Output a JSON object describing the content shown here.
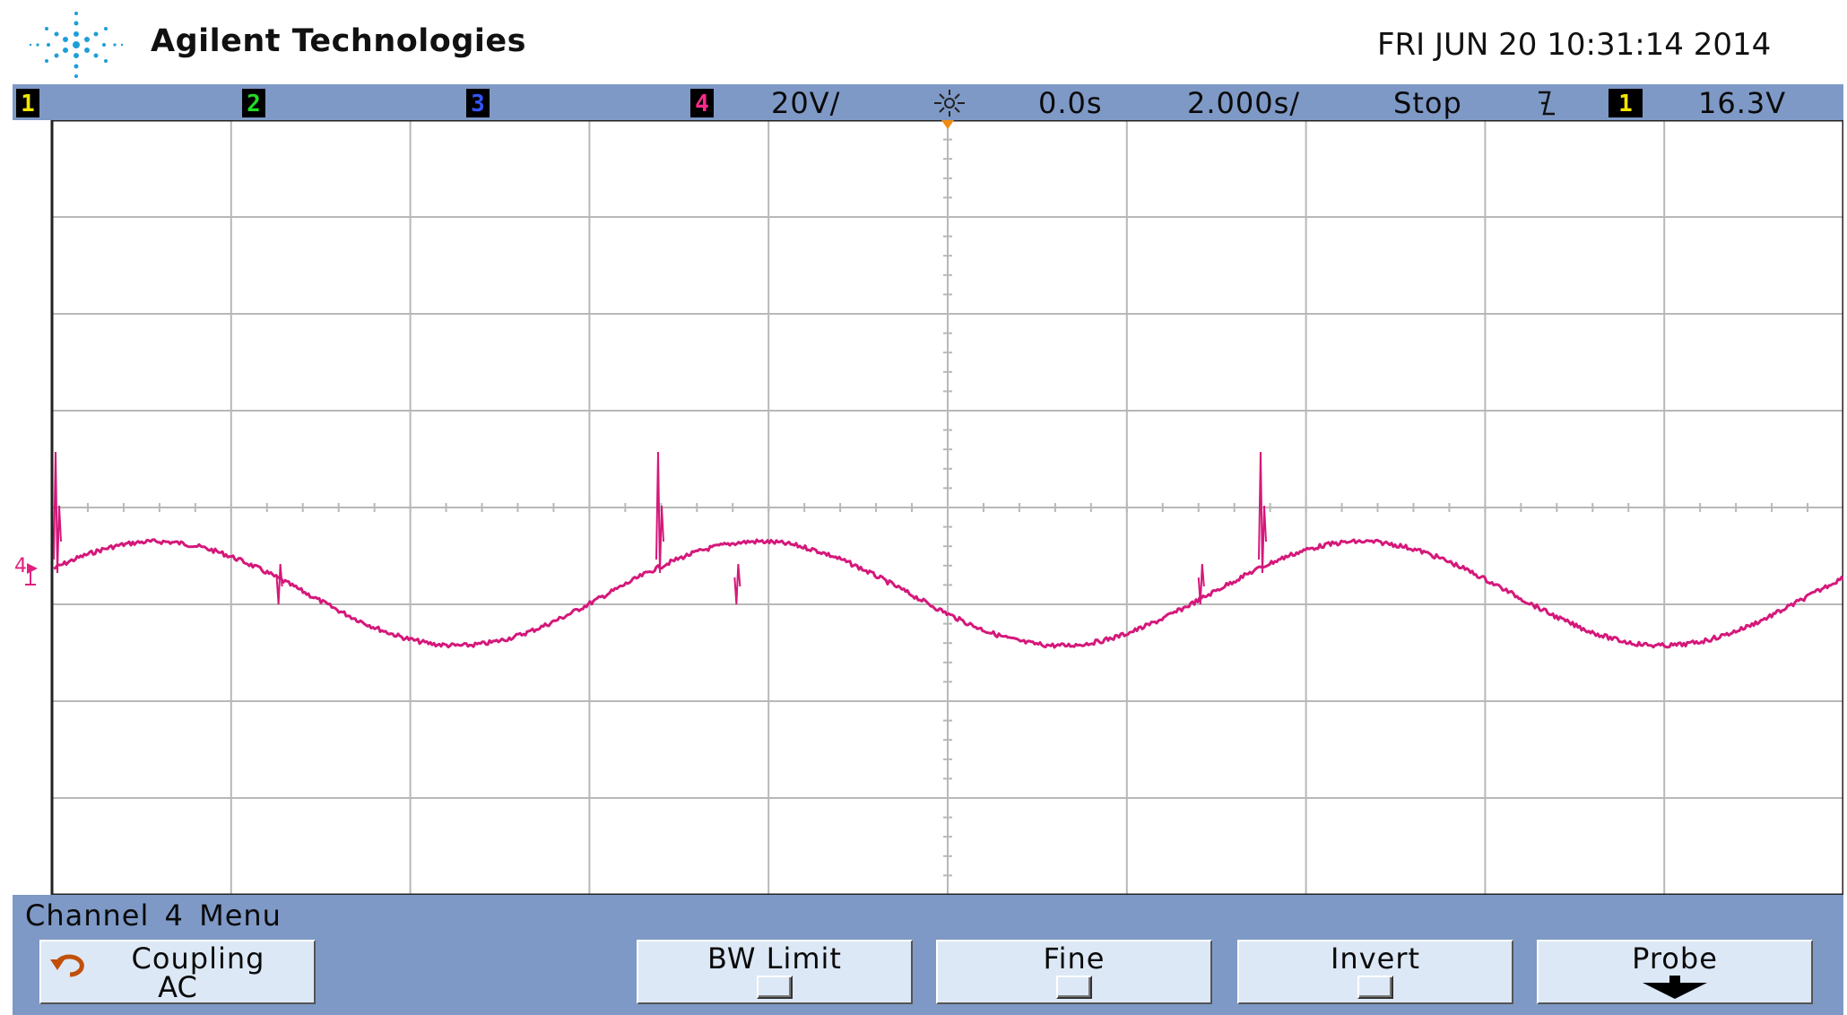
{
  "brand": {
    "name": "Agilent Technologies",
    "logo_icon": "agilent-spark-logo"
  },
  "datetime": "FRI JUN 20 10:31:14 2014",
  "status": {
    "channels": [
      {
        "num": "1",
        "color": "#f2e600"
      },
      {
        "num": "2",
        "color": "#22dd22"
      },
      {
        "num": "3",
        "color": "#3355ff"
      },
      {
        "num": "4",
        "color": "#ff2a8a"
      }
    ],
    "ch4_scale": "20V/",
    "acquire_icon": "run-stop-sun-icon",
    "delay": "0.0s",
    "timebase": "2.000s/",
    "run_state": "Stop",
    "trigger_slope_icon": "falling-edge-icon",
    "trigger_source": "1",
    "trigger_level": "16.3V"
  },
  "display": {
    "ground_marker": "4",
    "trace_color": "#d4187a",
    "grid": "on",
    "horizontal_divisions": 10,
    "vertical_divisions": 8
  },
  "menu": {
    "title": "Channel 4  Menu",
    "softkeys": [
      {
        "label": "Coupling",
        "value": "AC",
        "icon": "rotate-arrow-icon"
      },
      {
        "label": "BW Limit",
        "control": "checkbox"
      },
      {
        "label": "Fine",
        "control": "checkbox"
      },
      {
        "label": "Invert",
        "control": "checkbox"
      },
      {
        "label": "Probe",
        "icon": "down-arrow-icon"
      }
    ]
  }
}
